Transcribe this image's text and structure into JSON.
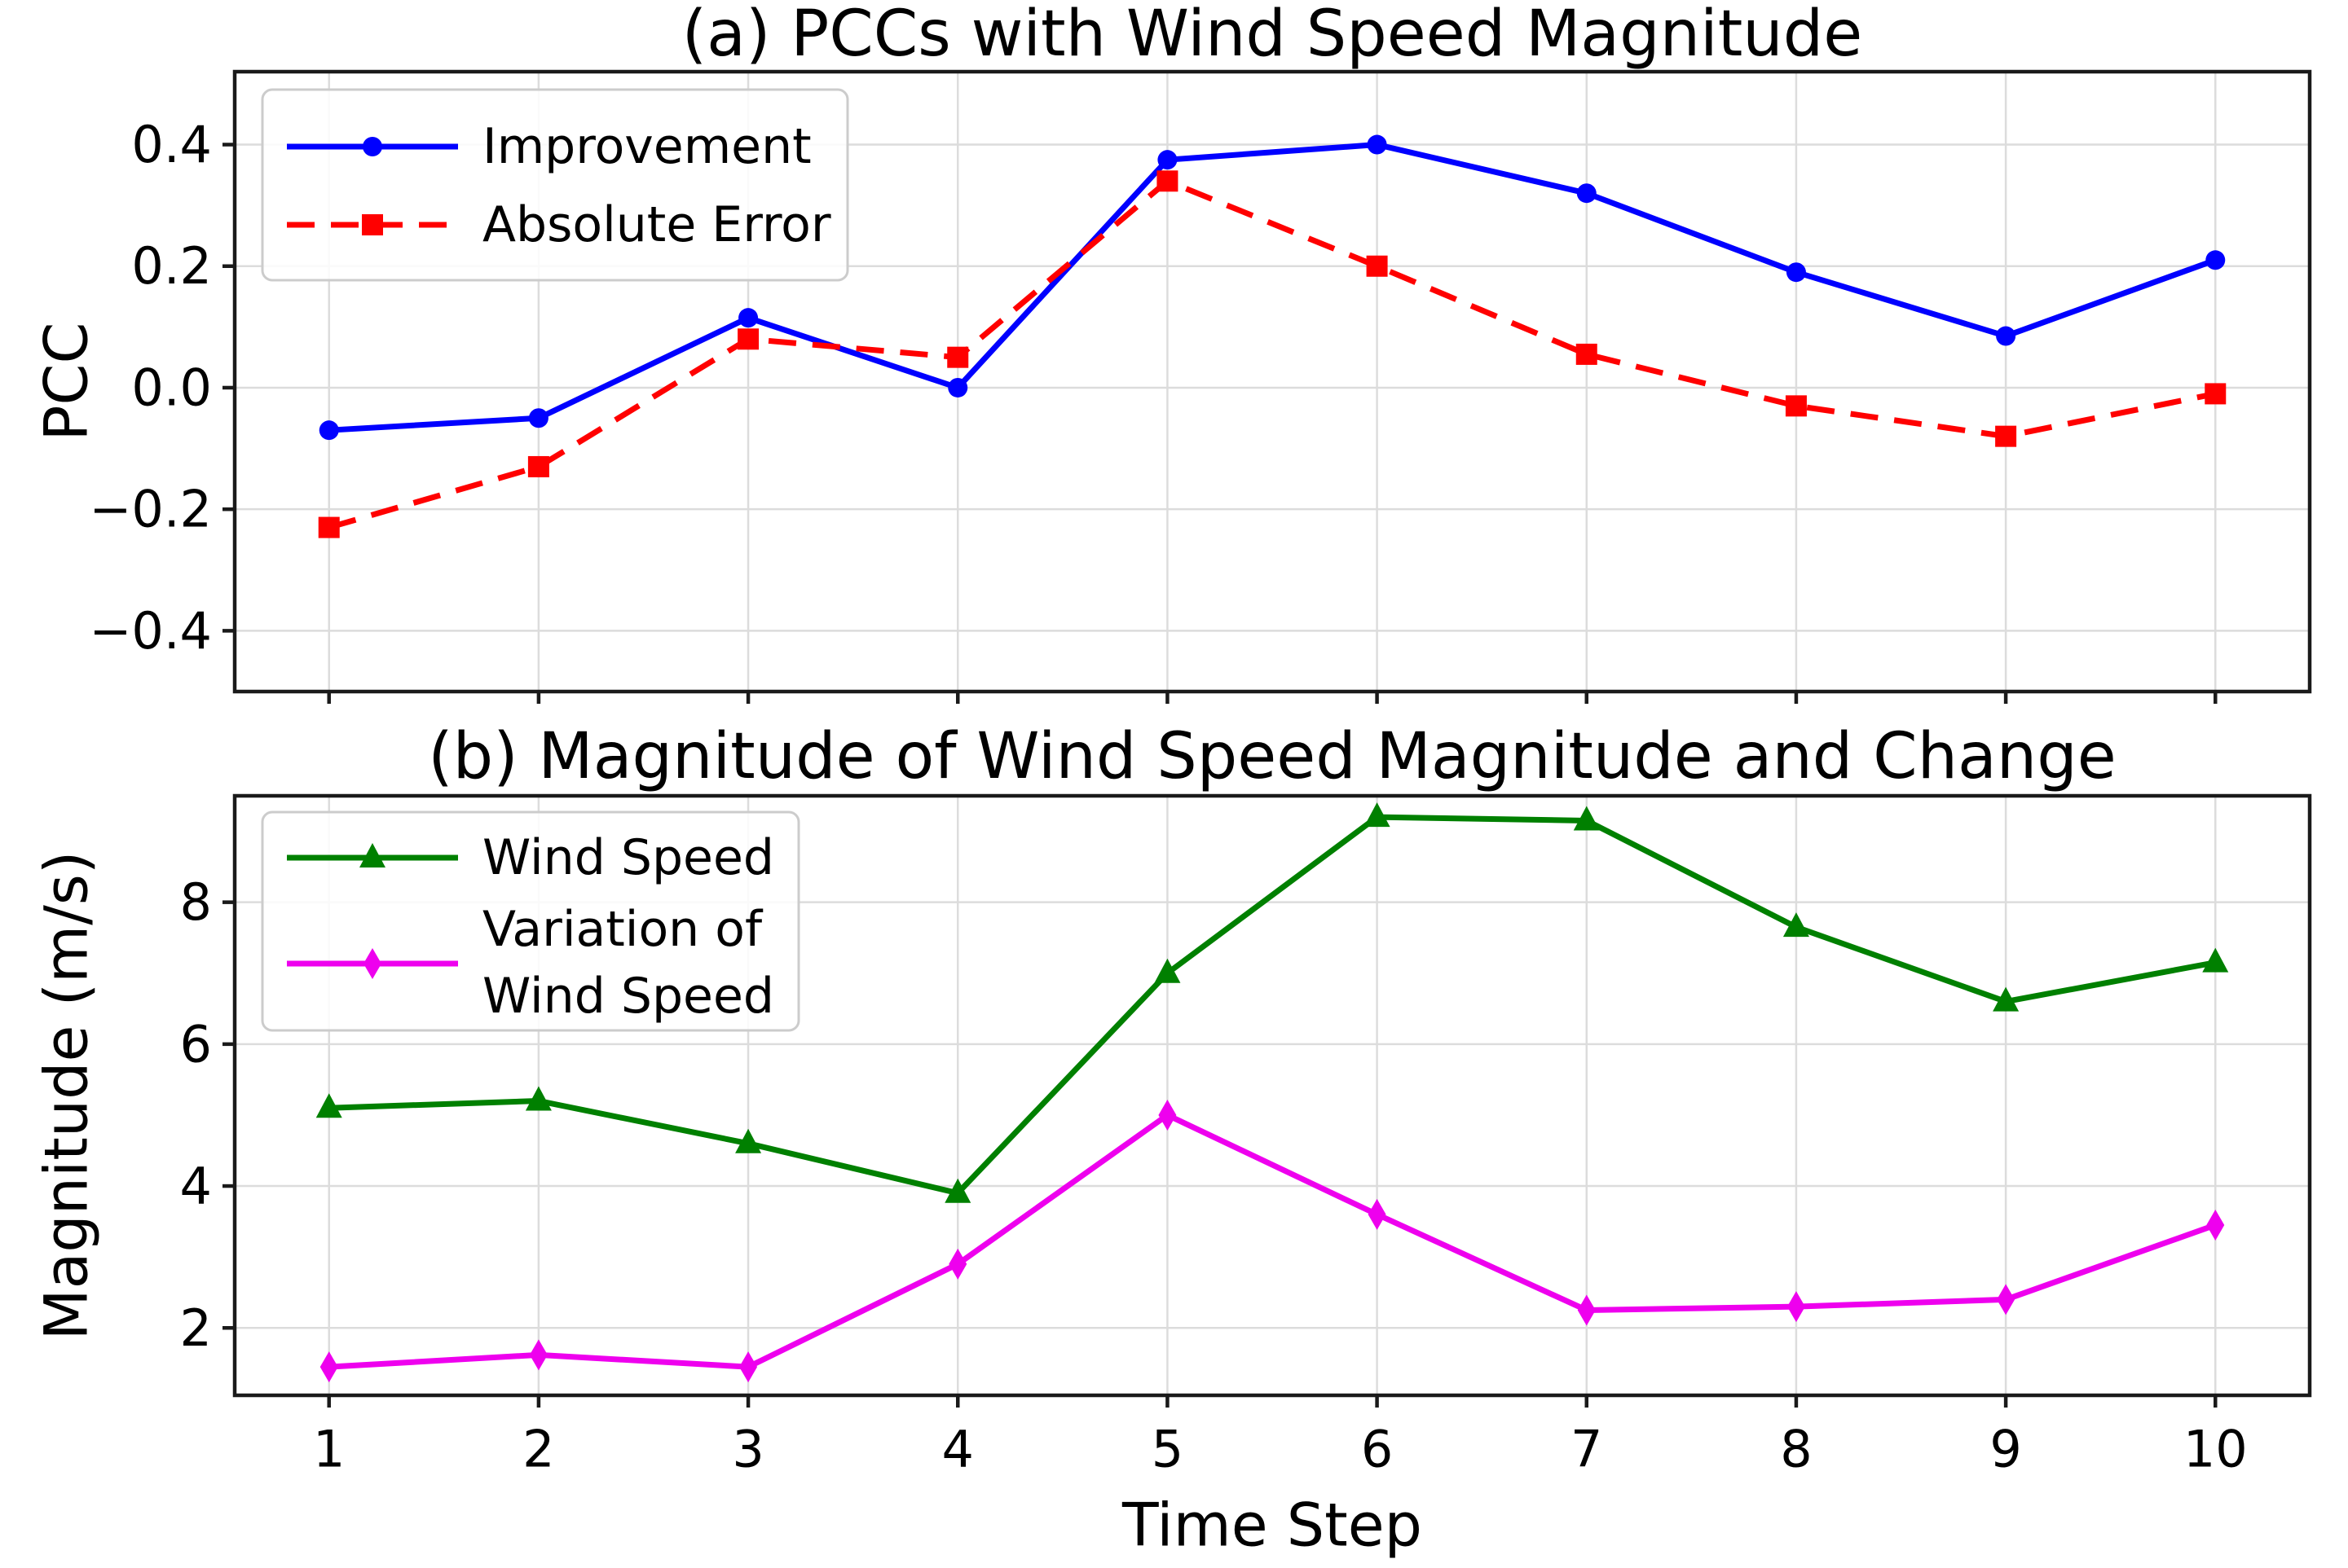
{
  "figure": {
    "background": "#ffffff",
    "text_color": "#000000",
    "spine_color": "#1a1a1a",
    "grid_color": "#dcdcdc",
    "legend_border_color": "#cccccc"
  },
  "chart_data": [
    {
      "type": "line",
      "title": "(a) PCCs with Wind Speed Magnitude",
      "xlabel": "",
      "ylabel": "PCC",
      "x": [
        1,
        2,
        3,
        4,
        5,
        6,
        7,
        8,
        9,
        10
      ],
      "xlim": [
        0.55,
        10.45
      ],
      "ylim": [
        -0.5,
        0.52
      ],
      "grid": true,
      "legend_position": "upper left",
      "show_xticklabels": false,
      "xticks": [
        1,
        2,
        3,
        4,
        5,
        6,
        7,
        8,
        9,
        10
      ],
      "xtick_labels": [
        "1",
        "2",
        "3",
        "4",
        "5",
        "6",
        "7",
        "8",
        "9",
        "10"
      ],
      "yticks": [
        0.4,
        0.2,
        0.0,
        -0.2,
        -0.4
      ],
      "ytick_labels": [
        "0.4",
        "0.2",
        "0.0",
        "−0.2",
        "−0.4"
      ],
      "series": [
        {
          "name": "Improvement",
          "color": "#0000ff",
          "linestyle": "solid",
          "marker": "circle",
          "values": [
            -0.07,
            -0.05,
            0.115,
            0.0,
            0.375,
            0.4,
            0.32,
            0.19,
            0.085,
            0.21
          ]
        },
        {
          "name": "Absolute Error",
          "color": "#ff0000",
          "linestyle": "dashed",
          "marker": "square",
          "values": [
            -0.23,
            -0.13,
            0.08,
            0.05,
            0.34,
            0.2,
            0.055,
            -0.03,
            -0.08,
            -0.01
          ]
        }
      ]
    },
    {
      "type": "line",
      "title": "(b) Magnitude of Wind Speed Magnitude and Change",
      "xlabel": "Time Step",
      "ylabel": "Magnitude (m/s)",
      "x": [
        1,
        2,
        3,
        4,
        5,
        6,
        7,
        8,
        9,
        10
      ],
      "xlim": [
        0.55,
        10.45
      ],
      "ylim": [
        1.05,
        9.5
      ],
      "grid": true,
      "legend_position": "upper left",
      "show_xticklabels": true,
      "xticks": [
        1,
        2,
        3,
        4,
        5,
        6,
        7,
        8,
        9,
        10
      ],
      "xtick_labels": [
        "1",
        "2",
        "3",
        "4",
        "5",
        "6",
        "7",
        "8",
        "9",
        "10"
      ],
      "yticks": [
        8,
        6,
        4,
        2
      ],
      "ytick_labels": [
        "8",
        "6",
        "4",
        "2"
      ],
      "series": [
        {
          "name": "Wind Speed",
          "color": "#008000",
          "linestyle": "solid",
          "marker": "triangle",
          "values": [
            5.1,
            5.2,
            4.6,
            3.9,
            7.0,
            9.2,
            9.15,
            7.65,
            6.6,
            7.15
          ]
        },
        {
          "name": "Variation of\nWind Speed",
          "color": "#ee00ee",
          "linestyle": "solid",
          "marker": "thin-diamond",
          "values": [
            1.45,
            1.62,
            1.45,
            2.9,
            5.0,
            3.6,
            2.25,
            2.3,
            2.4,
            3.45
          ]
        }
      ]
    }
  ]
}
